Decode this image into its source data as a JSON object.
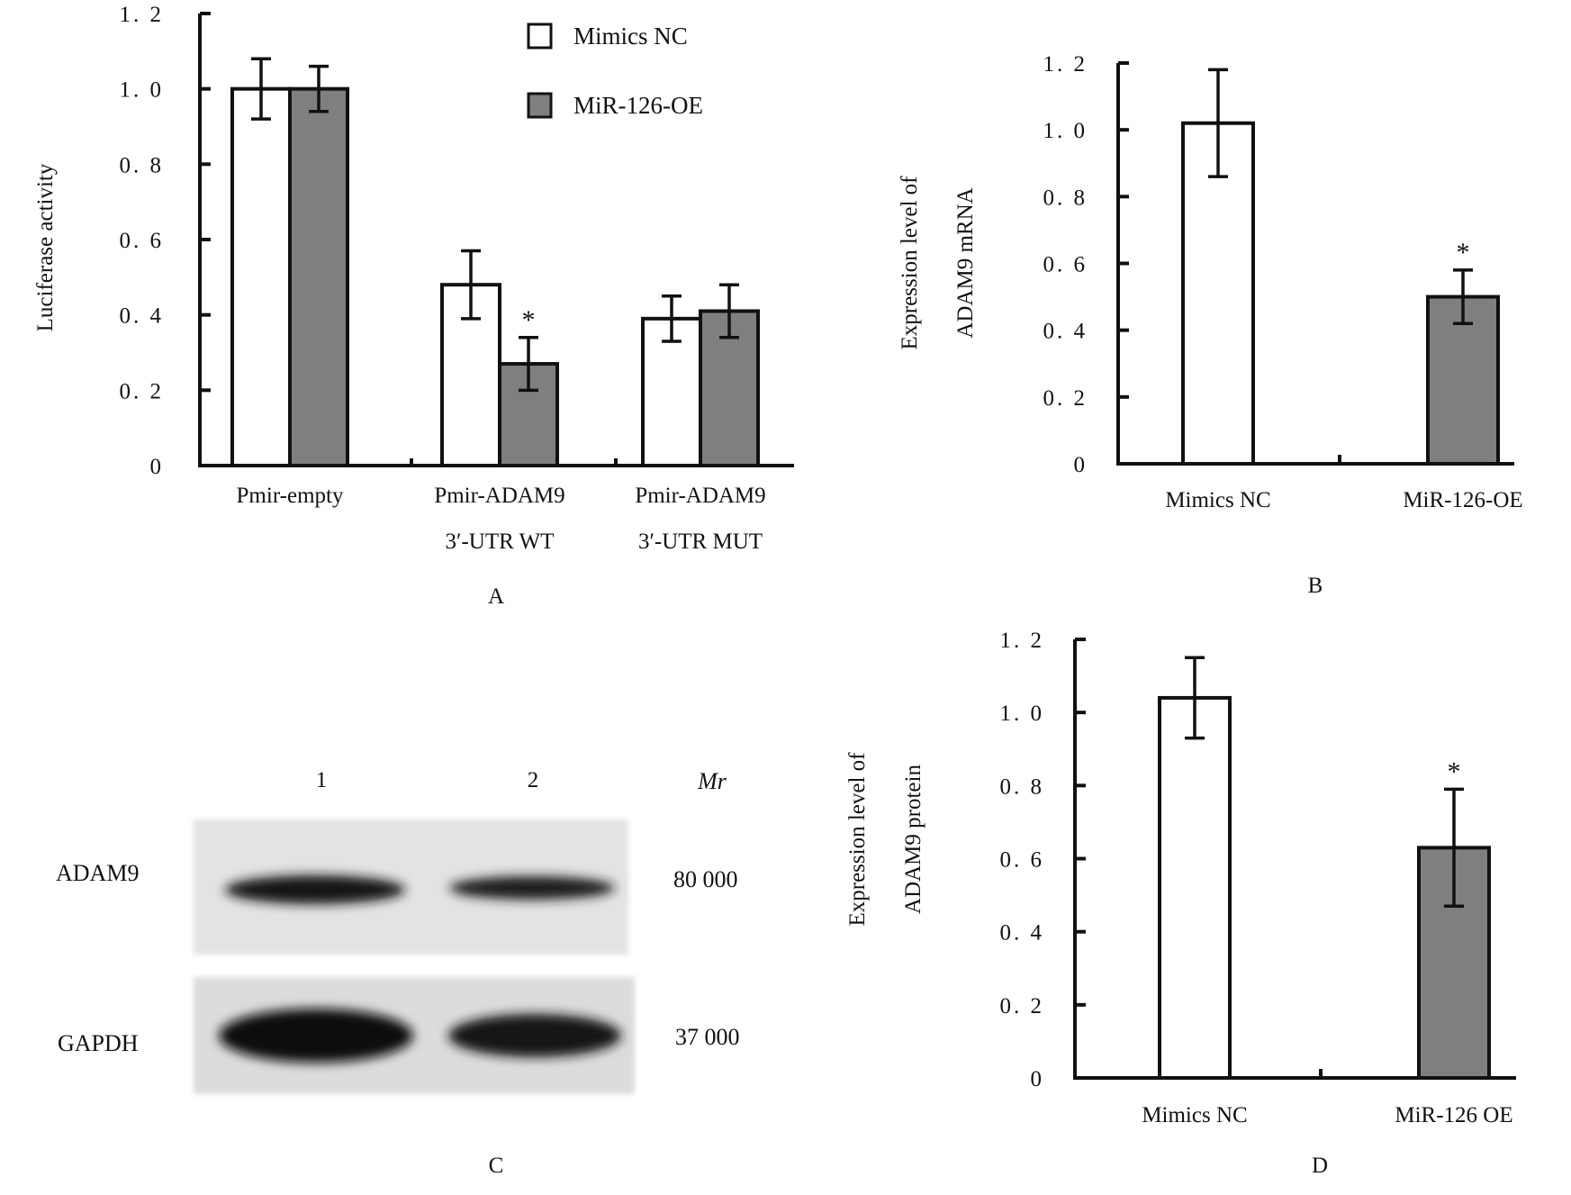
{
  "colors": {
    "mimics_nc": "#ffffff",
    "mir126_oe": "#7f7f7f",
    "axis": "#111111",
    "blot_bg": "#e2e2e2",
    "band": "#151515"
  },
  "chart_data": [
    {
      "panel": "A",
      "type": "bar",
      "ylabel": "Luciferase activity",
      "ylim": [
        0,
        1.2
      ],
      "yticks": [
        "0",
        "0. 2",
        "0. 4",
        "0. 6",
        "0. 8",
        "1. 0",
        "1. 2"
      ],
      "categories": [
        [
          "Pmir-empty"
        ],
        [
          "Pmir-ADAM9",
          "3′-UTR WT"
        ],
        [
          "Pmir-ADAM9",
          "3′-UTR MUT"
        ]
      ],
      "legend": {
        "placement": "top",
        "entries": [
          "Mimics NC",
          "MiR-126-OE"
        ]
      },
      "series": [
        {
          "name": "Mimics NC",
          "color": "#ffffff",
          "values": [
            1.0,
            0.48,
            0.39
          ],
          "errors": [
            0.08,
            0.09,
            0.06
          ],
          "stars": [
            "",
            "",
            ""
          ]
        },
        {
          "name": "MiR-126-OE",
          "color": "#7f7f7f",
          "values": [
            1.0,
            0.27,
            0.41
          ],
          "errors": [
            0.06,
            0.07,
            0.07
          ],
          "stars": [
            "",
            "*",
            ""
          ]
        }
      ],
      "panel_label": "A"
    },
    {
      "panel": "B",
      "type": "bar",
      "ylabel": [
        "Expression level of",
        "ADAM9  mRNA"
      ],
      "ylim": [
        0,
        1.2
      ],
      "yticks": [
        "0",
        "0. 2",
        "0. 4",
        "0. 6",
        "0. 8",
        "1. 0",
        "1. 2"
      ],
      "categories": [
        "Mimics NC",
        "MiR-126-OE"
      ],
      "values": [
        1.02,
        0.5
      ],
      "errors": [
        0.16,
        0.08
      ],
      "colors": [
        "#ffffff",
        "#7f7f7f"
      ],
      "stars": [
        "",
        "*"
      ],
      "panel_label": "B"
    },
    {
      "panel": "D",
      "type": "bar",
      "ylabel": [
        "Expression level of",
        "ADAM9 protein"
      ],
      "ylim": [
        0,
        1.2
      ],
      "yticks": [
        "0",
        "0. 2",
        "0. 4",
        "0. 6",
        "0. 8",
        "1. 0",
        "1. 2"
      ],
      "categories": [
        "Mimics NC",
        "MiR-126 OE"
      ],
      "values": [
        1.04,
        0.63
      ],
      "errors": [
        0.11,
        0.16
      ],
      "colors": [
        "#ffffff",
        "#7f7f7f"
      ],
      "stars": [
        "",
        "*"
      ],
      "panel_label": "D"
    }
  ],
  "blot": {
    "panel_label": "C",
    "lanes": [
      "1",
      "2"
    ],
    "mr_label": "Mr",
    "rows": [
      {
        "protein": "ADAM9",
        "mr": "80  000"
      },
      {
        "protein": "GAPDH",
        "mr": "37  000"
      }
    ]
  }
}
